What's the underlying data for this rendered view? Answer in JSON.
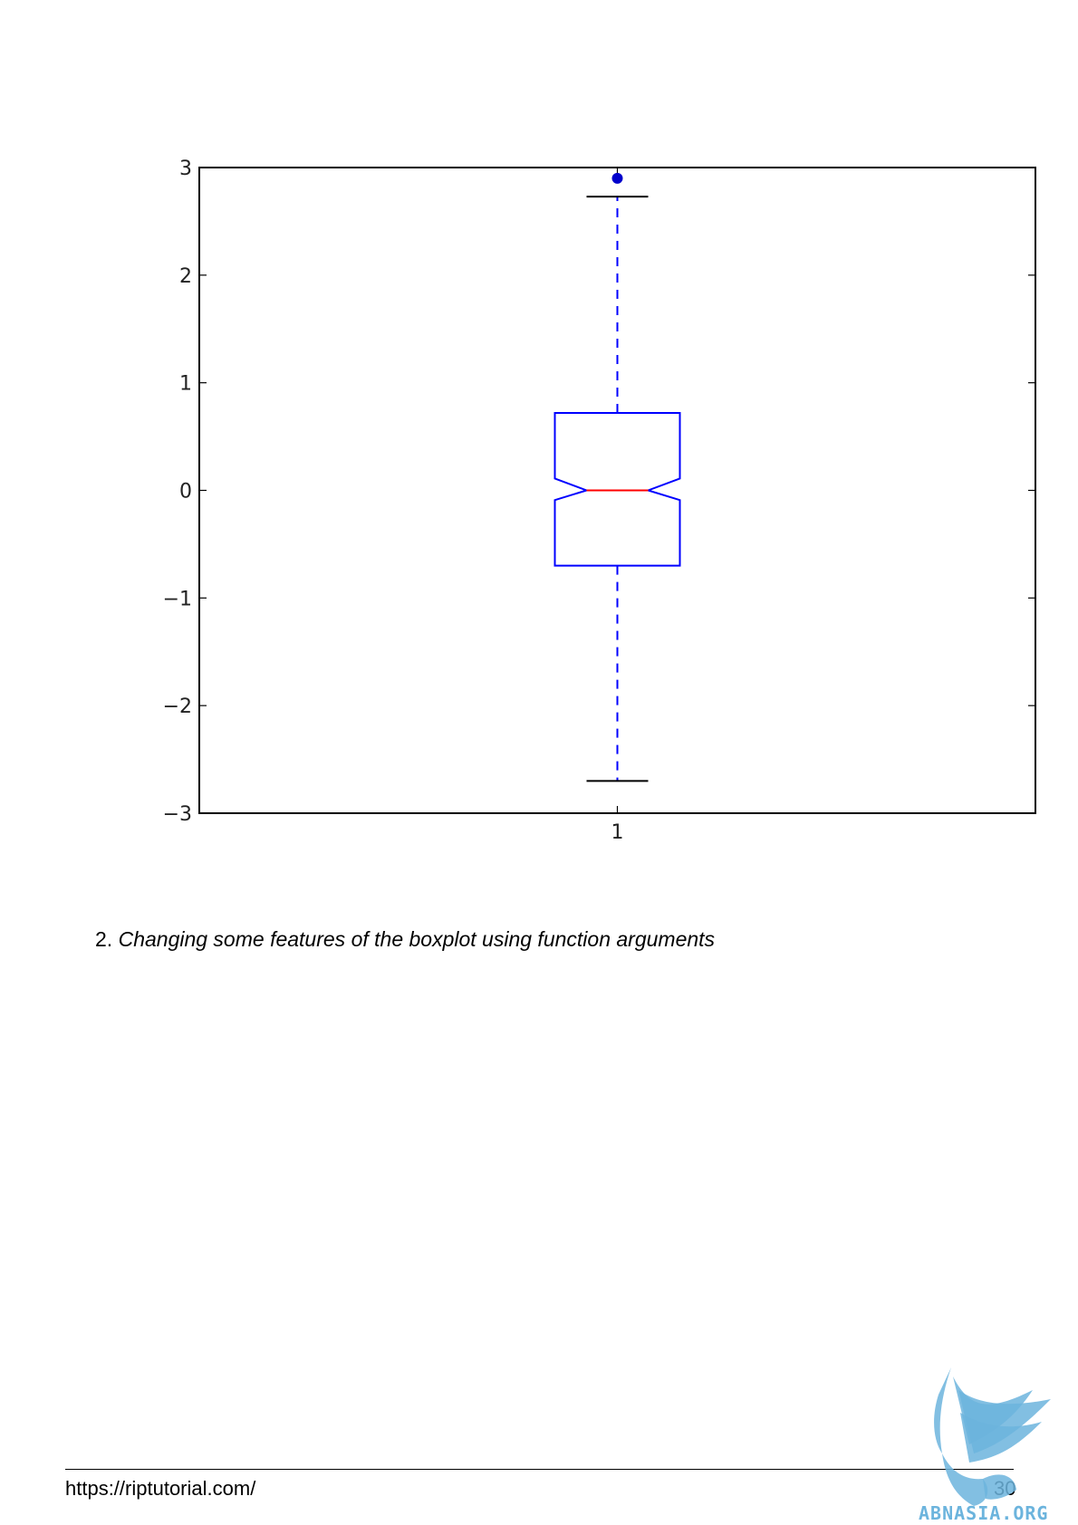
{
  "chart_data": {
    "type": "boxplot",
    "notched": true,
    "categories": [
      "1"
    ],
    "ylim": [
      -3,
      3
    ],
    "yticks": [
      "3",
      "2",
      "1",
      "0",
      "−1",
      "−2",
      "−3"
    ],
    "ytick_values": [
      3,
      2,
      1,
      0,
      -1,
      -2,
      -3
    ],
    "xticks": [
      "1"
    ],
    "box": {
      "median": 0.0,
      "q1": -0.7,
      "q3": 0.72,
      "notch_low": -0.09,
      "notch_high": 0.11,
      "whisker_low": -2.7,
      "whisker_high": 2.73,
      "fliers": [
        2.9
      ]
    },
    "grid": false,
    "colors": {
      "box": "#0000ff",
      "median": "#ff0000",
      "whisker": "#0000ff",
      "cap": "#000000",
      "flier": "#0000cc",
      "axes": "#000000"
    }
  },
  "section": {
    "number": "2.",
    "title": "Changing some features of the boxplot using function arguments"
  },
  "footer": {
    "url": "https://riptutorial.com/",
    "page_number": "30"
  },
  "watermark": {
    "text": "ABNASIA.ORG",
    "color": "#6cb4dd"
  }
}
